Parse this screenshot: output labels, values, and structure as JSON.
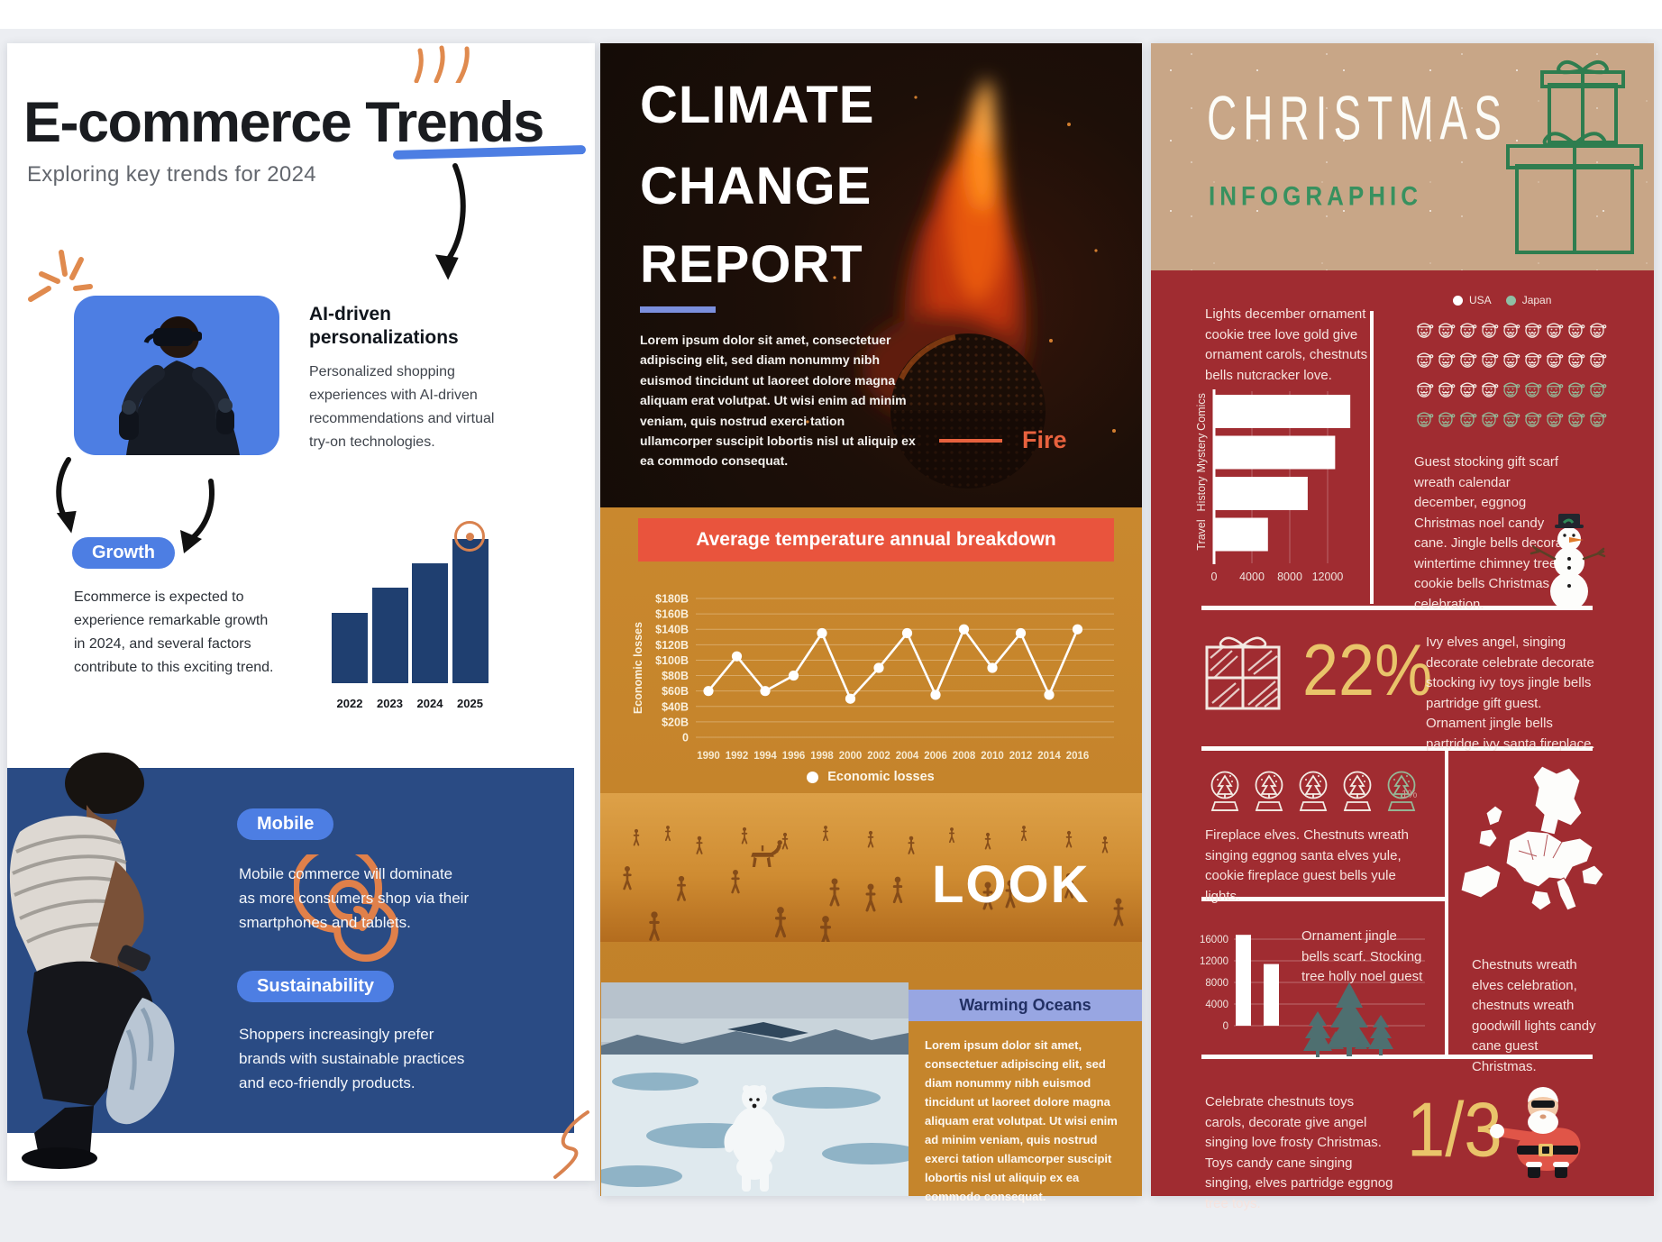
{
  "canvas": {
    "bg": "#eceef2",
    "topbar_bg": "#ffffff"
  },
  "posters": {
    "ecommerce": {
      "title": "E-commerce Trends",
      "subtitle": "Exploring key trends for 2024",
      "ai_heading": "AI-driven personalizations",
      "ai_body": "Personalized shopping experiences with AI-driven recommendations and virtual try-on technologies.",
      "growth_label": "Growth",
      "growth_body": "Ecommerce is expected to experience remarkable growth in 2024, and several factors contribute to this exciting trend.",
      "mobile_label": "Mobile",
      "mobile_body": "Mobile commerce will dominate as more consumers shop via their smartphones and tablets.",
      "sustainability_label": "Sustainability",
      "sustainability_body": "Shoppers increasingly prefer brands with sustainable practices and eco-friendly products.",
      "accent_blue": "#4d7ee3",
      "bar_navy": "#1f3f70"
    },
    "climate": {
      "title_line1": "CLIMATE",
      "title_line2": "CHANGE",
      "title_line3": "REPORT",
      "intro": "Lorem ipsum dolor sit amet, consectetuer adipiscing elit, sed diam nonummy nibh euismod tincidunt ut laoreet dolore magna aliquam erat volutpat. Ut wisi enim ad minim veniam, quis nostrud exerci tation ullamcorper suscipit lobortis nisl ut aliquip ex ea commodo consequat.",
      "fire_label": "Fire",
      "chart_banner": "Average temperature annual breakdown",
      "look_label": "LOOK",
      "warming_title": "Warming Oceans",
      "warming_body": "Lorem ipsum dolor sit amet, consectetuer adipiscing elit, sed diam nonummy nibh euismod tincidunt ut laoreet dolore magna aliquam erat volutpat. Ut wisi enim ad minim veniam, quis nostrud exerci tation ullamcorper suscipit lobortis nisl ut aliquip ex ea commodo consequat.",
      "accent_red": "#e9543d",
      "accent_lavender": "#98a6e2",
      "accent_orange": "#e8623e"
    },
    "christmas": {
      "title": "CHRISTMAS",
      "subtitle": "INFOGRAPHIC",
      "intro": "Lights december ornament cookie tree love gold give ornament carols, chestnuts bells nutcracker love.",
      "guest_body": "Guest stocking gift scarf wreath calendar december, eggnog Christmas noel candy cane. Jingle bells decorate wintertime chimney tree cookie bells Christmas celebration.",
      "stat_22": "22%",
      "stat_22_body": "Ivy elves angel, singing decorate celebrate decorate stocking ivy toys jingle bells partridge gift guest. Ornament jingle bells partridge ivy santa fireplace.",
      "fireplace_body": "Fireplace elves. Chestnuts wreath singing eggnog santa elves yule, cookie fireplace guest bells yule lights.",
      "ornament_body": "Ornament jingle bells scarf. Stocking tree holly noel guest",
      "chestnut_body": "Chestnuts wreath elves celebration, chestnuts wreath goodwill lights candy cane guest Christmas.",
      "celebrate_body": "Celebrate chestnuts toys carols, decorate give angel singing love frosty Christmas. Toys candy cane singing singing, elves partridge eggnog tree toys.",
      "stat_third": "1/3",
      "red": "#a02c31",
      "kraft": "#c8a687",
      "green": "#2f8a57",
      "yellow": "#e9c46a"
    }
  },
  "chart_data": [
    {
      "id": "ecommerce-growth-bars",
      "type": "bar",
      "categories": [
        "2022",
        "2023",
        "2024",
        "2025"
      ],
      "values": [
        49,
        66,
        83,
        100
      ],
      "note": "relative bar heights, no value axis shown",
      "bar_color": "#1f3f70"
    },
    {
      "id": "economic-losses-line",
      "type": "line",
      "title": "Average temperature annual breakdown",
      "ylabel": "Economic losses",
      "legend": [
        "Economic losses"
      ],
      "x": [
        1990,
        1992,
        1994,
        1996,
        1998,
        2000,
        2002,
        2004,
        2006,
        2008,
        2010,
        2012,
        2014,
        2016
      ],
      "values": [
        60,
        105,
        60,
        80,
        135,
        50,
        90,
        135,
        55,
        140,
        90,
        135,
        55,
        140
      ],
      "unit": "$B",
      "yticks": [
        "$180B",
        "$160B",
        "$140B",
        "$120B",
        "$100B",
        "$80B",
        "$60B",
        "$40B",
        "$20B",
        "0"
      ],
      "ylim": [
        0,
        180
      ],
      "grid": true,
      "legend_position": "bottom"
    },
    {
      "id": "christmas-book-categories",
      "type": "bar",
      "orientation": "horizontal",
      "categories": [
        "Comics",
        "Mystery",
        "History",
        "Travel"
      ],
      "values": [
        14300,
        12700,
        9800,
        5600
      ],
      "xticks": [
        0,
        4000,
        8000,
        12000
      ],
      "xlim": [
        0,
        16500
      ],
      "bar_color": "#ffffff"
    },
    {
      "id": "christmas-ornament-bars",
      "type": "bar",
      "categories": [
        "",
        ""
      ],
      "values": [
        16800,
        11400
      ],
      "yticks": [
        16000,
        12000,
        8000,
        4000,
        0
      ],
      "ylim": [
        0,
        17500
      ],
      "bar_color": "#ffffff"
    },
    {
      "id": "santa-pictogram",
      "type": "pictogram",
      "icon": "santa",
      "rows": 4,
      "columns": 9,
      "series": [
        {
          "name": "USA",
          "count": 22,
          "color": "#f3ebe4"
        },
        {
          "name": "Japan",
          "count": 14,
          "color": "#95b897"
        }
      ]
    },
    {
      "id": "snow-globe-pictogram",
      "type": "pictogram",
      "icon": "snow-globe",
      "rows": 1,
      "columns": 5,
      "series": [
        {
          "name": "white",
          "count": 4,
          "color": "#f3ebe4"
        },
        {
          "name": "green",
          "count": 1,
          "color": "#95b897"
        }
      ],
      "label": "1%"
    }
  ]
}
